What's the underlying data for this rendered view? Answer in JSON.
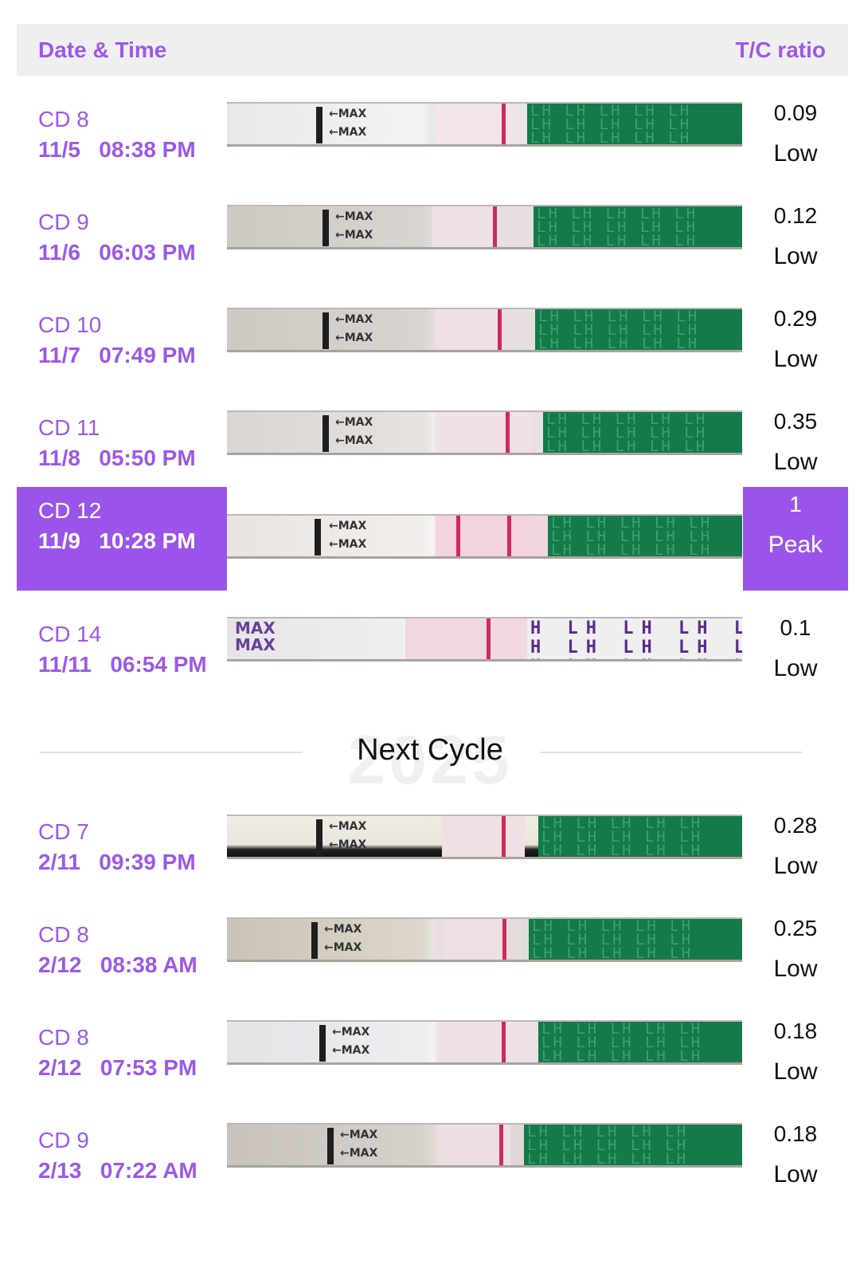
{
  "header": {
    "left_label": "Date & Time",
    "right_label": "T/C ratio"
  },
  "divider": {
    "label": "Next Cycle",
    "watermark": "2025"
  },
  "colors": {
    "accent": "#9b59e8",
    "peak_bg": "#9b54ea",
    "strip_green": "#147a4a",
    "test_line": "#cf2a5c"
  },
  "rows": [
    {
      "cd": "CD 8",
      "datetime": "11/5   08:38 PM",
      "ratio": "0.09",
      "level": "Low",
      "strip_label": "←MAX\n←MAX",
      "watermark_text": "LH LH LH LH LH"
    },
    {
      "cd": "CD 9",
      "datetime": "11/6   06:03 PM",
      "ratio": "0.12",
      "level": "Low",
      "strip_label": "←MAX\n←MAX",
      "watermark_text": "LH LH LH LH LH"
    },
    {
      "cd": "CD 10",
      "datetime": "11/7   07:49 PM",
      "ratio": "0.29",
      "level": "Low",
      "strip_label": "←MAX\n←MAX",
      "watermark_text": "LH LH LH LH LH"
    },
    {
      "cd": "CD 11",
      "datetime": "11/8   05:50 PM",
      "ratio": "0.35",
      "level": "Low",
      "strip_label": "←MAX\n←MAX",
      "watermark_text": "LH LH LH LH LH"
    },
    {
      "cd": "CD 12",
      "datetime": "11/9   10:28 PM",
      "ratio": "1",
      "level": "Peak",
      "strip_label": "←MAX\n←MAX",
      "watermark_text": "LH LH LH LH LH"
    },
    {
      "cd": "CD 14",
      "datetime": "11/11   06:54 PM",
      "ratio": "0.1",
      "level": "Low",
      "strip_label": "MAX\nMAX",
      "watermark_text": "H LH LH LH LH"
    },
    {
      "cd": "CD 7",
      "datetime": "2/11   09:39 PM",
      "ratio": "0.28",
      "level": "Low",
      "strip_label": "←MAX\n←MAX",
      "watermark_text": "LH LH LH LH LH"
    },
    {
      "cd": "CD 8",
      "datetime": "2/12   08:38 AM",
      "ratio": "0.25",
      "level": "Low",
      "strip_label": "←MAX\n←MAX",
      "watermark_text": "LH LH LH LH LH"
    },
    {
      "cd": "CD 8",
      "datetime": "2/12   07:53 PM",
      "ratio": "0.18",
      "level": "Low",
      "strip_label": "←MAX\n←MAX",
      "watermark_text": "LH LH LH LH LH"
    },
    {
      "cd": "CD 9",
      "datetime": "2/13   07:22 AM",
      "ratio": "0.18",
      "level": "Low",
      "strip_label": "←MAX\n←MAX",
      "watermark_text": "LH LH LH LH LH"
    }
  ]
}
